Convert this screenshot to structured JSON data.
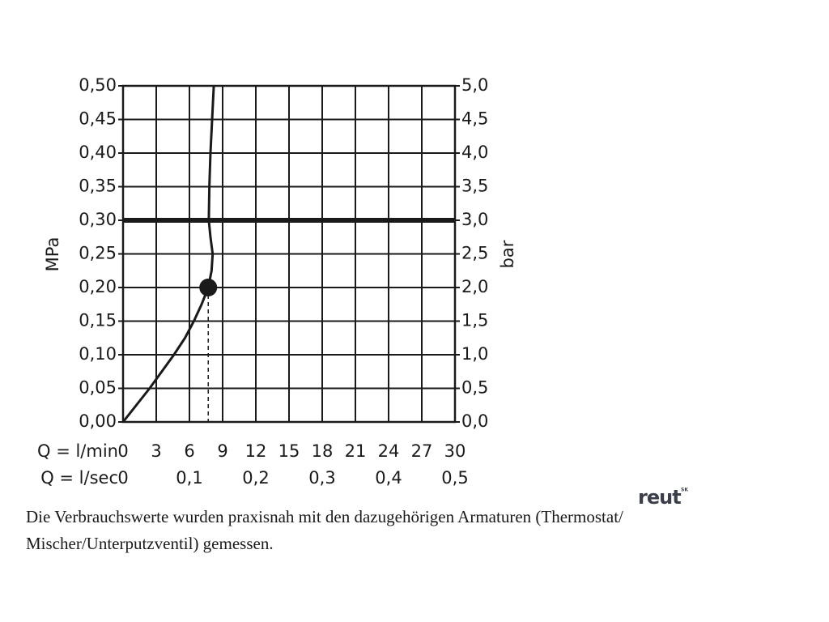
{
  "chart_data": {
    "type": "line",
    "x_label": "Q = l/min",
    "x2_label": "Q = l/sec",
    "y_label": "MPa",
    "y2_label": "bar",
    "xlim": [
      0,
      30
    ],
    "xticks": [
      0,
      3,
      6,
      9,
      12,
      15,
      18,
      21,
      24,
      27,
      30
    ],
    "x2lim": [
      0,
      0.5
    ],
    "x2ticks": [
      0,
      {
        "value": 0.1,
        "label": "0,1"
      },
      {
        "value": 0.2,
        "label": "0,2"
      },
      {
        "value": 0.3,
        "label": "0,3"
      },
      {
        "value": 0.4,
        "label": "0,4"
      },
      {
        "value": 0.5,
        "label": "0,5"
      }
    ],
    "ylim": [
      0,
      0.5
    ],
    "yticks": [
      {
        "value": 0,
        "label": "0,00"
      },
      {
        "value": 0.05,
        "label": "0,05"
      },
      {
        "value": 0.1,
        "label": "0,10"
      },
      {
        "value": 0.15,
        "label": "0,15"
      },
      {
        "value": 0.2,
        "label": "0,20"
      },
      {
        "value": 0.25,
        "label": "0,25"
      },
      {
        "value": 0.3,
        "label": "0,30"
      },
      {
        "value": 0.35,
        "label": "0,35"
      },
      {
        "value": 0.4,
        "label": "0,40"
      },
      {
        "value": 0.45,
        "label": "0,45"
      },
      {
        "value": 0.5,
        "label": "0,50"
      }
    ],
    "y2lim": [
      0,
      5
    ],
    "y2ticks": [
      {
        "value": 0,
        "label": "0,0"
      },
      {
        "value": 0.5,
        "label": "0,5"
      },
      {
        "value": 1,
        "label": "1,0"
      },
      {
        "value": 1.5,
        "label": "1,5"
      },
      {
        "value": 2,
        "label": "2,0"
      },
      {
        "value": 2.5,
        "label": "2,5"
      },
      {
        "value": 3,
        "label": "3,0"
      },
      {
        "value": 3.5,
        "label": "3,5"
      },
      {
        "value": 4,
        "label": "4,0"
      },
      {
        "value": 4.5,
        "label": "4,5"
      },
      {
        "value": 5,
        "label": "5,0"
      }
    ],
    "grid": true,
    "series": [
      {
        "color": "#1a1a1a",
        "x": [
          0,
          1.2,
          2.4,
          3.5,
          4.6,
          5.6,
          6.4,
          7.1,
          7.7,
          8.0,
          8.1,
          7.9,
          7.75,
          7.8,
          7.9,
          8.05,
          8.2
        ],
        "values": [
          0,
          0.025,
          0.05,
          0.075,
          0.1,
          0.125,
          0.15,
          0.175,
          0.2,
          0.225,
          0.25,
          0.275,
          0.3,
          0.35,
          0.4,
          0.45,
          0.5
        ]
      }
    ],
    "marker": {
      "x": 7.7,
      "y": 0.2
    },
    "reference_line": 0.3
  },
  "caption": [
    "Die Verbrauchswerte wurden praxisnah mit den dazugehörigen Armaturen (Thermostat/",
    "Mischer/Unterputzventil) gemessen."
  ],
  "logo": {
    "text": "reut",
    "sup": "SK"
  }
}
